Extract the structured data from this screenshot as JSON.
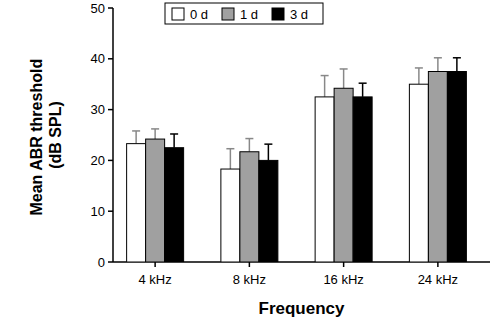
{
  "chart_data": {
    "type": "bar",
    "x_label": "Frequency",
    "y_label": "Mean ABR threshold (dB SPL)",
    "categories": [
      "4 kHz",
      "8 kHz",
      "16 kHz",
      "24 kHz"
    ],
    "series": [
      {
        "name": "0 d",
        "color": "#ffffff",
        "values": [
          23.3,
          18.3,
          32.5,
          35
        ],
        "errors": [
          2.5,
          4,
          4.2,
          3.2
        ]
      },
      {
        "name": "1 d",
        "color": "#a0a0a0",
        "values": [
          24.2,
          21.7,
          34.2,
          37.5
        ],
        "errors": [
          2,
          2.6,
          3.8,
          2.7
        ]
      },
      {
        "name": "3 d",
        "color": "#000000",
        "values": [
          22.5,
          20,
          32.5,
          37.5
        ],
        "errors": [
          2.7,
          3.2,
          2.7,
          2.7
        ]
      }
    ],
    "ylim": [
      0,
      50
    ],
    "yticks": [
      0,
      10,
      20,
      30,
      40,
      50
    ],
    "grid": false,
    "legend": "top-left"
  }
}
